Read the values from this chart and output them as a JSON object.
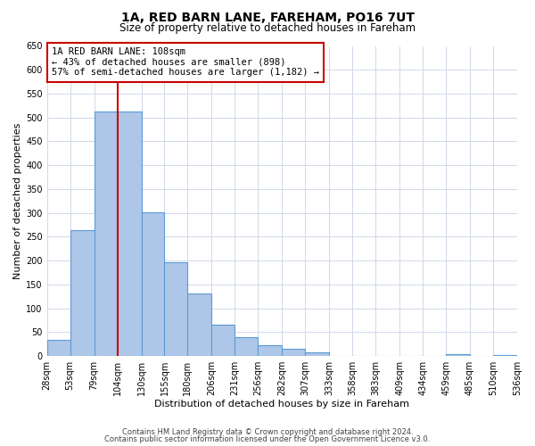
{
  "title": "1A, RED BARN LANE, FAREHAM, PO16 7UT",
  "subtitle": "Size of property relative to detached houses in Fareham",
  "xlabel": "Distribution of detached houses by size in Fareham",
  "ylabel": "Number of detached properties",
  "bar_edges": [
    28,
    53,
    79,
    104,
    130,
    155,
    180,
    206,
    231,
    256,
    282,
    307,
    333,
    358,
    383,
    409,
    434,
    459,
    485,
    510,
    536
  ],
  "bar_heights": [
    33,
    263,
    513,
    513,
    302,
    196,
    131,
    65,
    40,
    23,
    15,
    8,
    0,
    0,
    0,
    0,
    0,
    3,
    0,
    2
  ],
  "bar_color": "#aec6e8",
  "bar_edge_color": "#5b9bd5",
  "bar_linewidth": 0.8,
  "vline_x": 104,
  "vline_color": "#cc0000",
  "vline_linewidth": 1.5,
  "annotation_line1": "1A RED BARN LANE: 108sqm",
  "annotation_line2": "← 43% of detached houses are smaller (898)",
  "annotation_line3": "57% of semi-detached houses are larger (1,182) →",
  "annotation_box_color": "#cc0000",
  "ylim": [
    0,
    650
  ],
  "yticks": [
    0,
    50,
    100,
    150,
    200,
    250,
    300,
    350,
    400,
    450,
    500,
    550,
    600,
    650
  ],
  "tick_labels": [
    "28sqm",
    "53sqm",
    "79sqm",
    "104sqm",
    "130sqm",
    "155sqm",
    "180sqm",
    "206sqm",
    "231sqm",
    "256sqm",
    "282sqm",
    "307sqm",
    "333sqm",
    "358sqm",
    "383sqm",
    "409sqm",
    "434sqm",
    "459sqm",
    "485sqm",
    "510sqm",
    "536sqm"
  ],
  "footnote1": "Contains HM Land Registry data © Crown copyright and database right 2024.",
  "footnote2": "Contains public sector information licensed under the Open Government Licence v3.0.",
  "bg_color": "#ffffff",
  "grid_color": "#d0d8e8",
  "title_fontsize": 10,
  "subtitle_fontsize": 8.5,
  "xlabel_fontsize": 8,
  "ylabel_fontsize": 8,
  "tick_fontsize": 7,
  "annotation_fontsize": 7.5,
  "footnote_fontsize": 6
}
